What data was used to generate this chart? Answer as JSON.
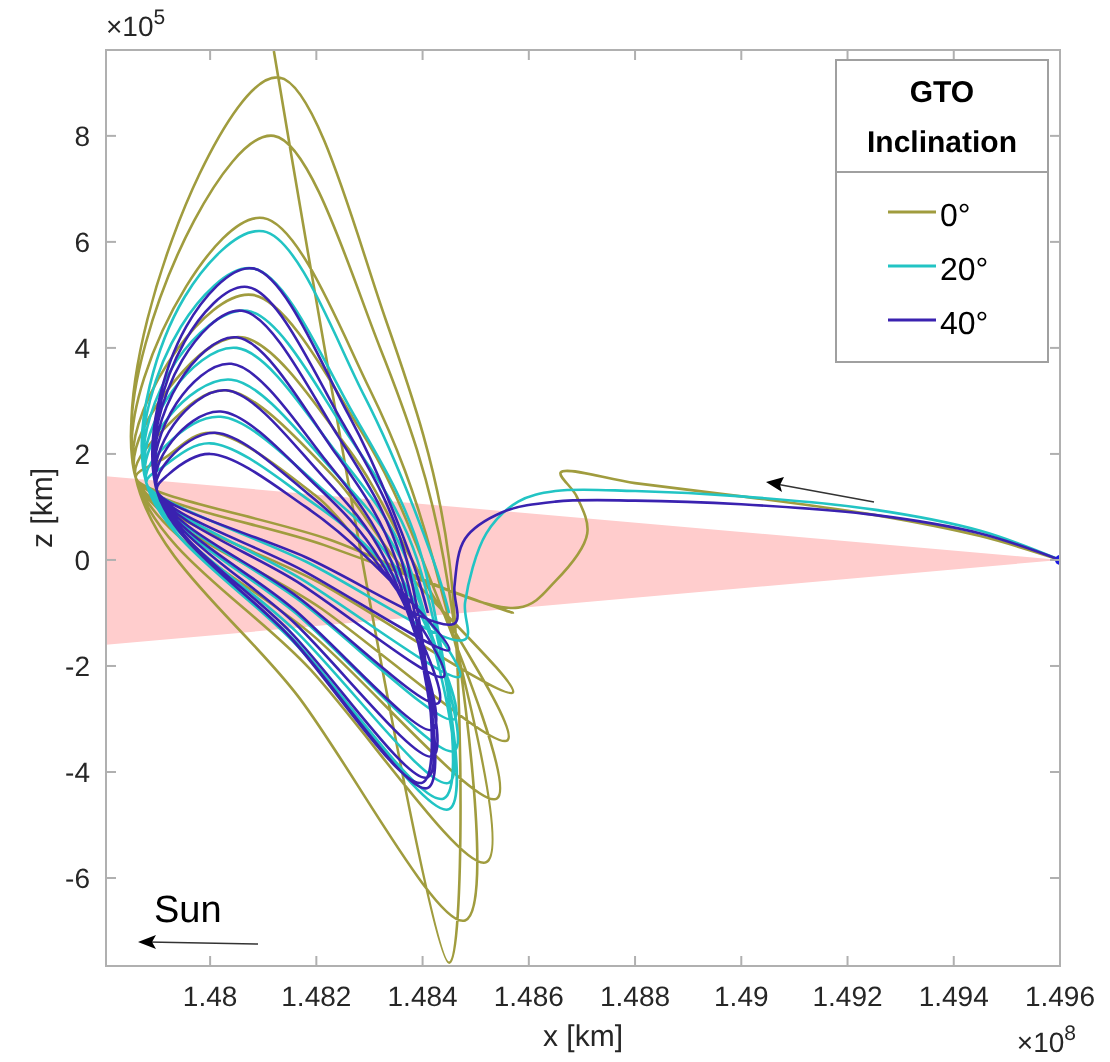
{
  "chart_data": {
    "type": "line",
    "xlabel": "x [km]",
    "ylabel": "z [km]",
    "legend_title": "GTO Inclination",
    "legend": "top right",
    "grid": false,
    "xlim": [
      1.47804,
      1.496
    ],
    "ylim": [
      -7.66,
      9.62
    ],
    "xticks": [
      1.48,
      1.482,
      1.484,
      1.486,
      1.488,
      1.49,
      1.492,
      1.494,
      1.496
    ],
    "yticks": [
      -6,
      -4,
      -2,
      0,
      2,
      4,
      6,
      8
    ],
    "annotations": [
      "×10$^{5}$",
      "×10$^{8}$",
      "Sun"
    ],
    "series": [
      {
        "type": "area",
        "color": "#ffcccc",
        "x": [
          1.47804,
          1.496
        ],
        "values": [
          1.58,
          0
        ]
      },
      {
        "type": "area",
        "color": "#ffcdcd",
        "x": [
          1.47804,
          1.496
        ],
        "values": [
          -1.6,
          0
        ]
      },
      {
        "name": "0°",
        "color": "#a09c3e",
        "x": [
          1.496,
          1.4945,
          1.4925,
          1.49,
          1.488,
          1.4866,
          1.4869,
          1.4871,
          1.4865,
          1.4858,
          1.4822,
          1.4786,
          1.47914,
          1.48,
          1.482,
          1.4832,
          1.4857,
          1.48215,
          1.4786,
          1.47922,
          1.4803,
          1.4823,
          1.4835,
          1.4857,
          1.48215,
          1.4786,
          1.47932,
          1.4806,
          1.4826,
          1.4838,
          1.4856,
          1.4821,
          1.4786,
          1.4794,
          1.4808,
          1.4828,
          1.484,
          1.4854,
          1.482,
          1.4786,
          1.47955,
          1.481,
          1.483,
          1.4842,
          1.4852,
          1.4819,
          1.4786,
          1.4797,
          1.4812,
          1.4832,
          1.4844,
          1.4848,
          1.4817,
          1.4786,
          1.4798,
          1.4813,
          1.4833,
          1.4845,
          1.4845,
          1.4812
        ],
        "values": [
          0,
          0.45,
          0.85,
          1.2,
          1.45,
          1.65,
          1.2,
          0.5,
          -0.4,
          -0.9,
          0.4,
          1.55,
          1.92,
          2.4,
          1.2,
          0,
          -1,
          0.28,
          1.55,
          2.56,
          3.2,
          1.6,
          0,
          -2.5,
          -0.48,
          1.55,
          3.36,
          4.2,
          2.1,
          0,
          -3.4,
          -0.92,
          1.55,
          4,
          5,
          2.5,
          0,
          -4.5,
          -1.48,
          1.55,
          5.16,
          6.45,
          3.23,
          0,
          -5.7,
          -2.08,
          1.55,
          6.4,
          8,
          4,
          0,
          -6.8,
          -2.63,
          1.55,
          7.28,
          9.1,
          4.55,
          0,
          -7.6,
          9.6
        ]
      },
      {
        "name": "20°",
        "color": "#22c4c4",
        "x": [
          1.496,
          1.4945,
          1.4925,
          1.49,
          1.488,
          1.4865,
          1.4858,
          1.4852,
          1.4848,
          1.4848,
          1.4818,
          1.4788,
          1.47912,
          1.48,
          1.4819,
          1.4832,
          1.4847,
          1.48175,
          1.4788,
          1.47917,
          1.4802,
          1.4821,
          1.4834,
          1.4846,
          1.4817,
          1.4788,
          1.47924,
          1.4804,
          1.4823,
          1.4836,
          1.4846,
          1.4817,
          1.4788,
          1.4793,
          1.4805,
          1.4824,
          1.4837,
          1.4845,
          1.48165,
          1.4788,
          1.47937,
          1.4807,
          1.4826,
          1.4839,
          1.4845,
          1.48165,
          1.4788,
          1.47945,
          1.4808,
          1.4827,
          1.484,
          1.4844,
          1.4816,
          1.4788,
          1.47952,
          1.481,
          1.4829,
          1.4842,
          1.4845
        ],
        "values": [
          0,
          0.55,
          0.95,
          1.2,
          1.3,
          1.3,
          1.1,
          0.5,
          -0.8,
          -1.5,
          -0.03,
          1.45,
          1.76,
          2.2,
          1.1,
          0,
          -2.2,
          -0.38,
          1.45,
          2.16,
          2.7,
          1.35,
          0,
          -3,
          -0.78,
          1.45,
          2.72,
          3.4,
          1.7,
          0,
          -3.6,
          -1.08,
          1.45,
          3.2,
          4,
          2,
          0,
          -4.2,
          -1.38,
          1.45,
          3.76,
          4.7,
          2.35,
          0,
          -4.7,
          -1.63,
          1.45,
          4.4,
          5.5,
          2.75,
          0,
          -4.5,
          -1.53,
          1.45,
          4.96,
          6.2,
          3.1,
          0,
          -1
        ]
      },
      {
        "name": "40°",
        "color": "#3a22b0",
        "x": [
          1.496,
          1.4945,
          1.4925,
          1.49,
          1.488,
          1.4865,
          1.4855,
          1.4848,
          1.4846,
          1.4846,
          1.4818,
          1.479,
          1.4792,
          1.48,
          1.4818,
          1.483,
          1.4845,
          1.48175,
          1.479,
          1.47924,
          1.4801,
          1.4819,
          1.4831,
          1.4844,
          1.4817,
          1.479,
          1.47928,
          1.4802,
          1.482,
          1.4832,
          1.4843,
          1.48165,
          1.479,
          1.47932,
          1.4803,
          1.4821,
          1.4833,
          1.4842,
          1.4816,
          1.479,
          1.47937,
          1.4804,
          1.4822,
          1.4834,
          1.4842,
          1.4816,
          1.479,
          1.47942,
          1.4805,
          1.4823,
          1.4835,
          1.4841,
          1.48155,
          1.479,
          1.47947,
          1.4806,
          1.4824,
          1.4836,
          1.4841,
          1.48155,
          1.479,
          1.47952,
          1.4807,
          1.4825,
          1.4837,
          1.484,
          1.4815,
          1.479,
          1.47955,
          1.4808,
          1.4826,
          1.4838,
          1.4841
        ],
        "values": [
          0,
          0.5,
          0.85,
          1.05,
          1.12,
          1.1,
          0.9,
          0.4,
          -0.5,
          -1.2,
          0.05,
          1.3,
          1.6,
          2,
          1,
          0,
          -1.7,
          -0.2,
          1.3,
          1.92,
          2.4,
          1.2,
          0,
          -2.2,
          -0.45,
          1.3,
          2.24,
          2.8,
          1.4,
          0,
          -2.7,
          -0.7,
          1.3,
          2.56,
          3.2,
          1.6,
          0,
          -3.2,
          -0.95,
          1.3,
          2.96,
          3.7,
          1.85,
          0,
          -3.7,
          -1.2,
          1.3,
          3.36,
          4.2,
          2.1,
          0,
          -4.1,
          -1.4,
          1.3,
          3.76,
          4.7,
          2.35,
          0,
          -4.3,
          -1.5,
          1.3,
          4.12,
          5.15,
          2.58,
          0,
          -4.2,
          -1.45,
          1.3,
          4.4,
          5.5,
          2.75,
          0,
          -1
        ]
      },
      {
        "type": "scatter",
        "color": "#1a1ae0",
        "x": [
          1.496
        ],
        "values": [
          0
        ]
      }
    ]
  }
}
